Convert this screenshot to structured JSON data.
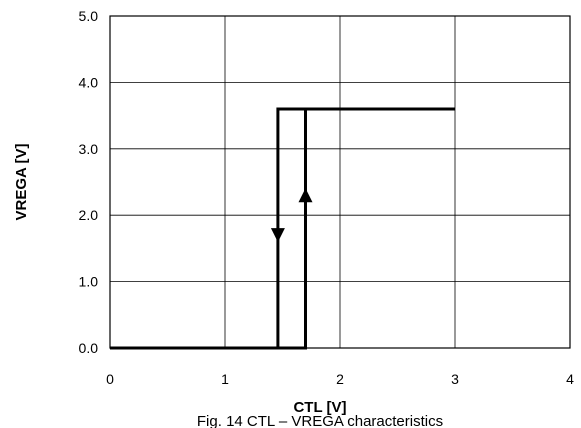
{
  "chart_data": {
    "type": "line",
    "xlabel": "CTL [V]",
    "ylabel": "VREGA [V]",
    "xlim": [
      0,
      4
    ],
    "ylim": [
      0,
      5
    ],
    "x_ticks": [
      "0",
      "1",
      "2",
      "3",
      "4"
    ],
    "y_ticks": [
      "0.0",
      "1.0",
      "2.0",
      "3.0",
      "4.0",
      "5.0"
    ],
    "grid": true,
    "series": [
      {
        "direction": "rising",
        "points": [
          [
            0,
            0
          ],
          [
            1.7,
            0
          ],
          [
            1.7,
            3.6
          ],
          [
            3.0,
            3.6
          ]
        ],
        "arrow": {
          "x": 1.7,
          "y": 2.3,
          "dir": "up"
        }
      },
      {
        "direction": "falling",
        "points": [
          [
            3.0,
            3.6
          ],
          [
            1.46,
            3.6
          ],
          [
            1.46,
            0
          ],
          [
            0,
            0
          ]
        ],
        "arrow": {
          "x": 1.46,
          "y": 1.7,
          "dir": "down"
        }
      }
    ],
    "line_color": "#000000",
    "caption": "Fig. 14 CTL – VREGA characteristics"
  }
}
